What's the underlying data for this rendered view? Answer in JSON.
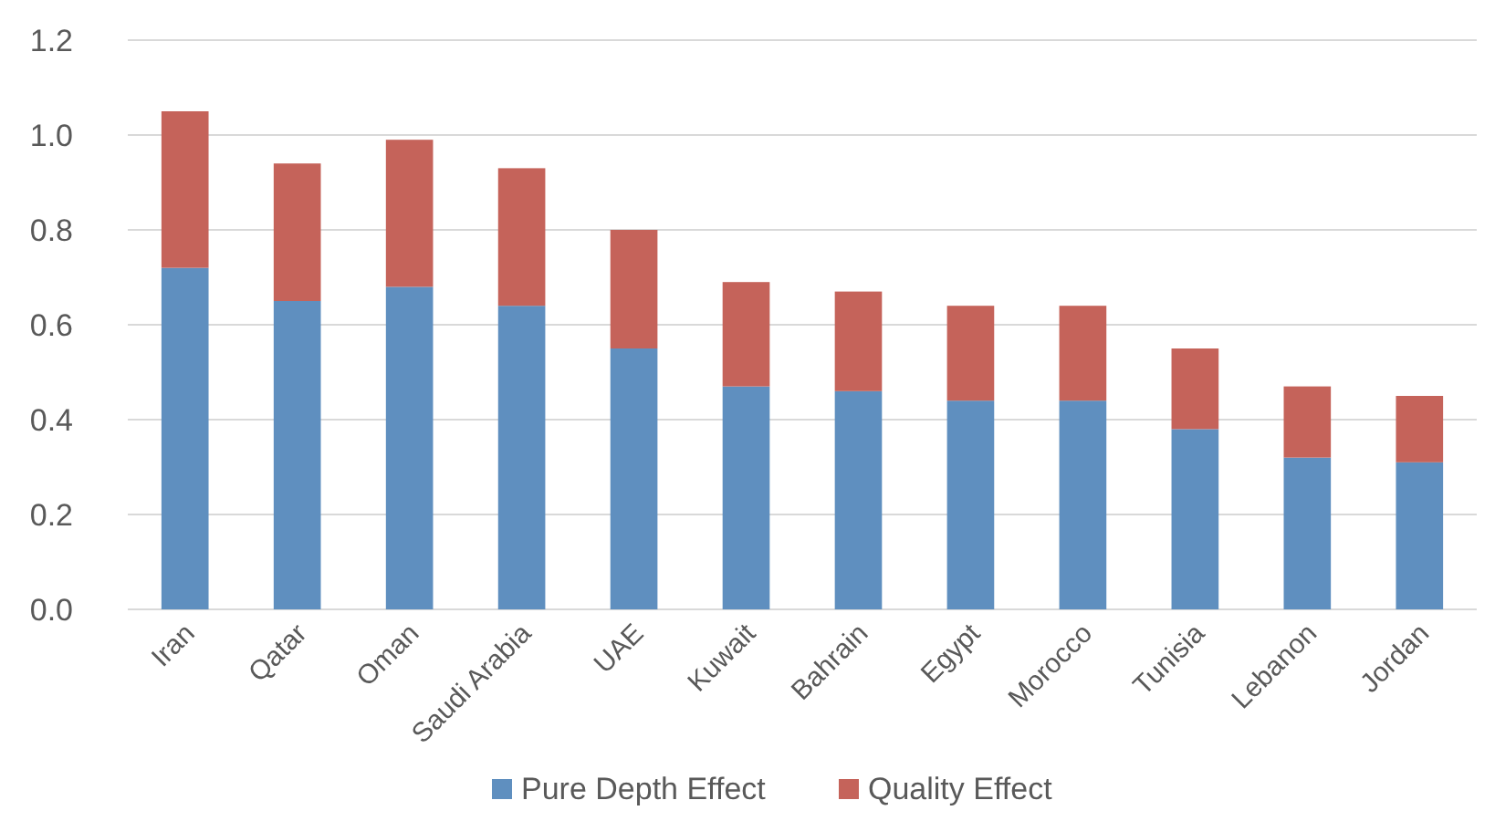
{
  "chart_data": {
    "type": "bar",
    "stacked": true,
    "categories": [
      "Iran",
      "Qatar",
      "Oman",
      "Saudi Arabia",
      "UAE",
      "Kuwait",
      "Bahrain",
      "Egypt",
      "Morocco",
      "Tunisia",
      "Lebanon",
      "Jordan"
    ],
    "series": [
      {
        "name": "Pure Depth Effect",
        "color": "#5f8fbf",
        "values": [
          0.72,
          0.65,
          0.68,
          0.64,
          0.55,
          0.47,
          0.46,
          0.44,
          0.44,
          0.38,
          0.32,
          0.31
        ]
      },
      {
        "name": "Quality Effect",
        "color": "#c5635a",
        "values": [
          0.33,
          0.29,
          0.31,
          0.29,
          0.25,
          0.22,
          0.21,
          0.2,
          0.2,
          0.17,
          0.15,
          0.14
        ]
      }
    ],
    "ylim": [
      0,
      1.2
    ],
    "yticks": [
      {
        "value": 0,
        "label": "0.0"
      },
      {
        "value": 0.2,
        "label": "0.2"
      },
      {
        "value": 0.4,
        "label": "0.4"
      },
      {
        "value": 0.6,
        "label": "0.6"
      },
      {
        "value": 0.8,
        "label": "0.8"
      },
      {
        "value": 1,
        "label": "1.0"
      },
      {
        "value": 1.2,
        "label": "1.2"
      }
    ],
    "grid": "y",
    "legend": "bottom"
  }
}
